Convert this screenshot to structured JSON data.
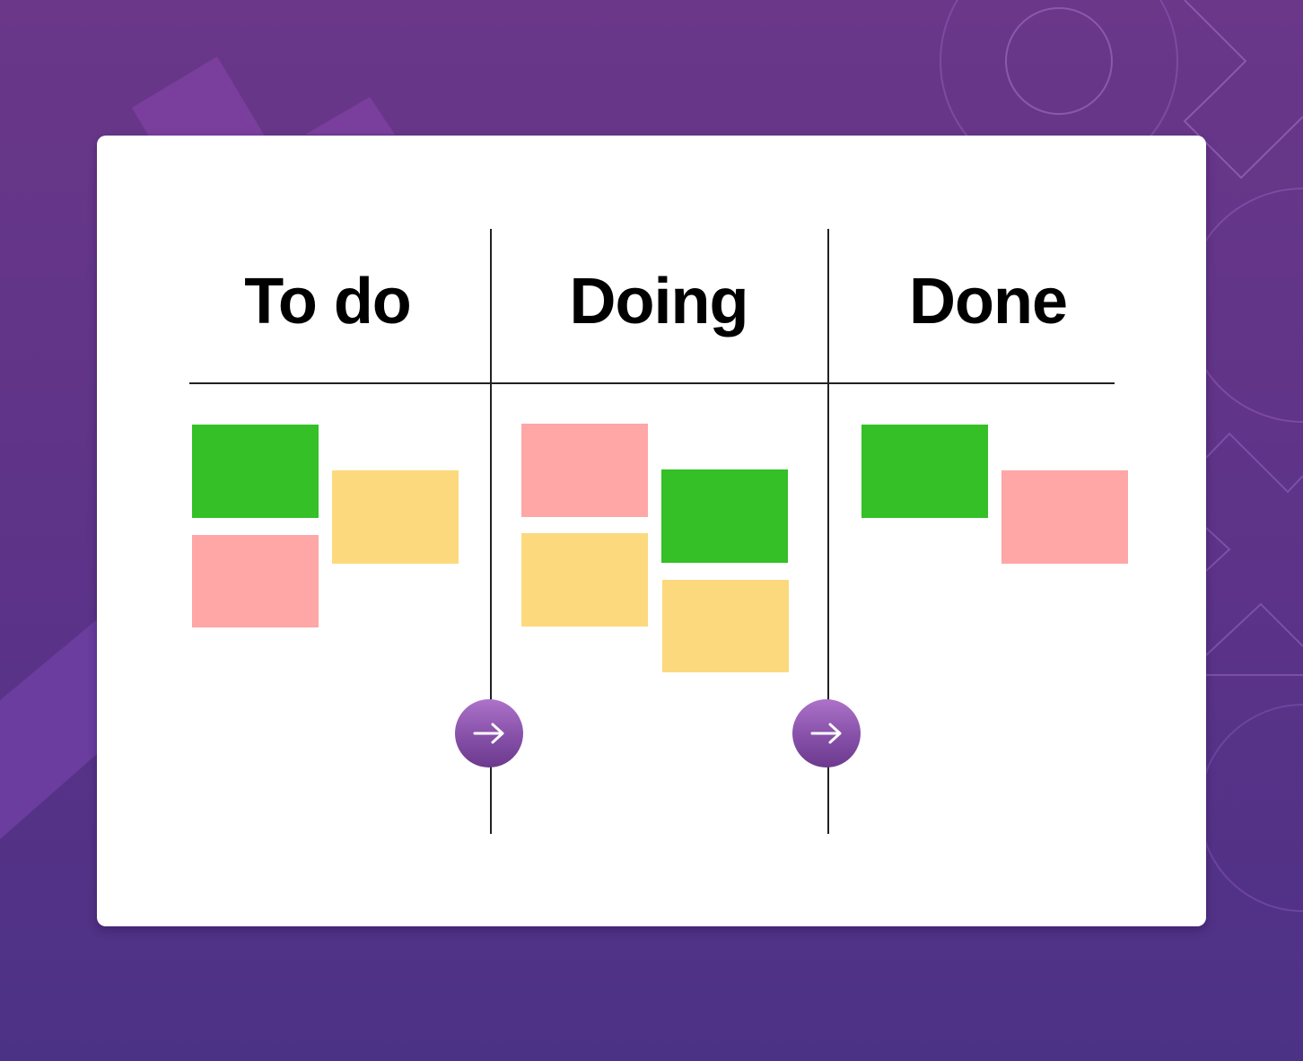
{
  "colors": {
    "green": "#34c026",
    "yellow": "#fdd97e",
    "pink": "#ffa6a6",
    "accent": "#8650a8"
  },
  "columns": [
    {
      "title": "To do",
      "notes": [
        "green",
        "yellow",
        "pink"
      ]
    },
    {
      "title": "Doing",
      "notes": [
        "pink",
        "green",
        "yellow",
        "yellow"
      ]
    },
    {
      "title": "Done",
      "notes": [
        "green",
        "pink"
      ]
    }
  ],
  "buttons": [
    {
      "icon": "arrow-right-icon"
    },
    {
      "icon": "arrow-right-icon"
    }
  ]
}
